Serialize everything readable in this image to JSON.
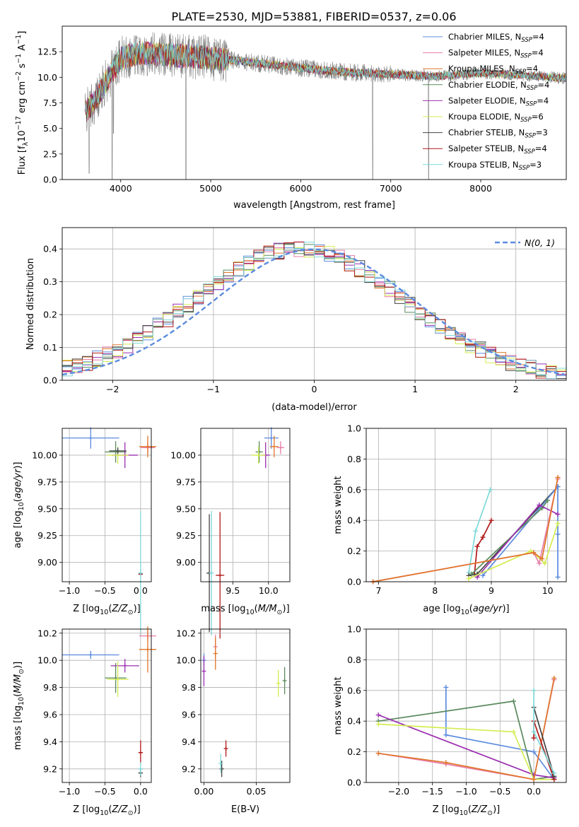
{
  "figure": {
    "title": "PLATE=2530, MJD=53881, FIBERID=0537, z=0.06"
  },
  "colors": {
    "chabrier_miles": "#5b8bde",
    "salpeter_miles": "#e87ea8",
    "kroupa_miles": "#e0762a",
    "chabrier_elodie": "#5a8a5e",
    "salpeter_elodie": "#9b2fb0",
    "kroupa_elodie": "#d4ec52",
    "chabrier_stelib": "#444444",
    "salpeter_stelib": "#b01818",
    "kroupa_stelib": "#7fd8d8",
    "spectrum": "#808080",
    "normal_curve": "#5b8bde",
    "grid": "#b0b0b0"
  },
  "chart_data": [
    {
      "id": "spectrum",
      "type": "line",
      "title": "PLATE=2530, MJD=53881, FIBERID=0537, z=0.06",
      "xlabel": "wavelength [Angstrom, rest frame]",
      "ylabel": "Flux [f_λ 10^-17 erg cm^-2 s^-1 A^-1]",
      "xlim": [
        3350,
        8950
      ],
      "ylim": [
        0,
        15
      ],
      "xticks": [
        4000,
        5000,
        6000,
        7000,
        8000
      ],
      "yticks": [
        0.0,
        2.5,
        5.0,
        7.5,
        10.0,
        12.5
      ],
      "grid": false,
      "legend_position": "top-right",
      "legend": [
        "Chabrier MILES, N_SSP=4",
        "Salpeter MILES, N_SSP=4",
        "Kroupa MILES, N_SSP=4",
        "Chabrier ELODIE, N_SSP=4",
        "Salpeter ELODIE, N_SSP=4",
        "Kroupa ELODIE, N_SSP=6",
        "Chabrier STELIB, N_SSP=3",
        "Salpeter STELIB, N_SSP=4",
        "Kroupa STELIB, N_SSP=3"
      ],
      "spectrum_envelope": {
        "x": [
          3600,
          3700,
          3800,
          3900,
          4000,
          4200,
          4500,
          5000,
          5500,
          6000,
          6500,
          7000,
          7500,
          8000,
          8500,
          8950
        ],
        "y": [
          6.5,
          7.5,
          9.0,
          10.5,
          11.8,
          12.4,
          12.2,
          11.9,
          11.4,
          10.9,
          10.5,
          10.3,
          10.1,
          10.4,
          10.2,
          9.9
        ]
      },
      "dips": [
        {
          "x": 3650,
          "y": 0.6
        },
        {
          "x": 3905,
          "y": 0.0
        },
        {
          "x": 3920,
          "y": 4.5
        },
        {
          "x": 4725,
          "y": 0.0
        },
        {
          "x": 6800,
          "y": 0.0
        },
        {
          "x": 7420,
          "y": 0.0
        }
      ]
    },
    {
      "id": "residuals",
      "type": "histogram",
      "xlabel": "(data-model)/error",
      "ylabel": "Normed distribution",
      "xlim": [
        -2.5,
        2.5
      ],
      "ylim": [
        0,
        0.465
      ],
      "xticks": [
        -2,
        -1,
        0,
        1,
        2
      ],
      "yticks": [
        0.0,
        0.1,
        0.2,
        0.3,
        0.4
      ],
      "grid": true,
      "legend_position": "top-right",
      "curve_label": "N(0, 1)"
    },
    {
      "id": "age_vs_Z",
      "type": "scatter",
      "xlabel": "Z [log10(Z/Z⊙)]",
      "ylabel": "age [log10(age/yr)]",
      "xlim": [
        -1.1,
        0.15
      ],
      "ylim": [
        8.82,
        10.25
      ],
      "xticks": [
        -1.0,
        -0.5,
        0.0
      ],
      "yticks": [
        9.0,
        9.25,
        9.5,
        9.75,
        10.0
      ],
      "grid": true,
      "points": [
        {
          "series": "chabrier_miles",
          "x": -0.7,
          "y": 10.16,
          "xerr": 0.4,
          "yerr": 0.1
        },
        {
          "series": "salpeter_miles",
          "x": 0.1,
          "y": 10.07,
          "xerr": 0.1,
          "yerr": 0.06
        },
        {
          "series": "kroupa_miles",
          "x": 0.1,
          "y": 10.08,
          "xerr": 0.12,
          "yerr": 0.1
        },
        {
          "series": "chabrier_elodie",
          "x": -0.35,
          "y": 10.03,
          "xerr": 0.15,
          "yerr": 0.1
        },
        {
          "series": "salpeter_elodie",
          "x": -0.22,
          "y": 10.0,
          "xerr": 0.18,
          "yerr": 0.12
        },
        {
          "series": "kroupa_elodie",
          "x": -0.32,
          "y": 10.0,
          "xerr": 0.15,
          "yerr": 0.08
        },
        {
          "series": "chabrier_stelib",
          "x": -0.32,
          "y": 10.04,
          "xerr": 0.12,
          "yerr": 0.03
        },
        {
          "series": "salpeter_stelib",
          "x": 0.0,
          "y": 8.89,
          "xerr": 0.03,
          "yerr": 0.0
        },
        {
          "series": "kroupa_stelib",
          "x": 0.0,
          "y": 8.9,
          "xerr": 0.03,
          "yerr": 0.58
        }
      ]
    },
    {
      "id": "age_vs_mass",
      "type": "scatter",
      "xlabel": "mass [log10(M/M⊙)]",
      "ylabel": "",
      "xlim": [
        9.05,
        10.3
      ],
      "ylim": [
        8.82,
        10.25
      ],
      "xticks": [
        9.5,
        10.0
      ],
      "yticks": [
        9.0,
        9.25,
        9.5,
        9.75,
        10.0
      ],
      "grid": true,
      "points": [
        {
          "series": "chabrier_miles",
          "x": 10.04,
          "y": 10.16,
          "xerr": 0.1,
          "yerr": 0.1
        },
        {
          "series": "salpeter_miles",
          "x": 10.17,
          "y": 10.07,
          "xerr": 0.05,
          "yerr": 0.06
        },
        {
          "series": "kroupa_miles",
          "x": 10.08,
          "y": 10.08,
          "xerr": 0.06,
          "yerr": 0.1
        },
        {
          "series": "chabrier_elodie",
          "x": 9.87,
          "y": 10.03,
          "xerr": 0.05,
          "yerr": 0.1
        },
        {
          "series": "salpeter_elodie",
          "x": 9.96,
          "y": 10.0,
          "xerr": 0.06,
          "yerr": 0.12
        },
        {
          "series": "kroupa_elodie",
          "x": 9.86,
          "y": 10.0,
          "xerr": 0.1,
          "yerr": 0.08
        },
        {
          "series": "chabrier_stelib",
          "x": 9.17,
          "y": 8.9,
          "xerr": 0.04,
          "yerr": 0.55
        },
        {
          "series": "salpeter_stelib",
          "x": 9.32,
          "y": 8.88,
          "xerr": 0.06,
          "yerr": 0.59
        },
        {
          "series": "kroupa_stelib",
          "x": 9.2,
          "y": 8.9,
          "xerr": 0.03,
          "yerr": 0.58
        }
      ]
    },
    {
      "id": "massweight_vs_age",
      "type": "line",
      "xlabel": "age [log10(age/yr)]",
      "ylabel": "mass weight",
      "xlim": [
        6.78,
        10.33
      ],
      "ylim": [
        0,
        1.0
      ],
      "xticks": [
        7,
        8,
        9,
        10
      ],
      "yticks": [
        0.0,
        0.2,
        0.4,
        0.6,
        0.8,
        1.0
      ],
      "grid": true,
      "series": [
        {
          "key": "kroupa_stelib",
          "x": [
            8.6,
            8.72,
            8.98
          ],
          "y": [
            0.06,
            0.33,
            0.6
          ]
        },
        {
          "key": "salpeter_stelib",
          "x": [
            8.7,
            8.75,
            8.85,
            9.0
          ],
          "y": [
            0.05,
            0.23,
            0.29,
            0.4
          ]
        },
        {
          "key": "chabrier_stelib",
          "x": [
            8.6,
            8.75,
            10.18
          ],
          "y": [
            0.04,
            0.05,
            0.62
          ]
        },
        {
          "key": "chabrier_miles",
          "x": [
            8.85,
            10.18,
            10.18,
            10.18
          ],
          "y": [
            0.04,
            0.62,
            0.31,
            0.03
          ]
        },
        {
          "key": "chabrier_elodie",
          "x": [
            8.65,
            9.9,
            10.0
          ],
          "y": [
            0.05,
            0.48,
            0.53
          ]
        },
        {
          "key": "salpeter_elodie",
          "x": [
            8.75,
            9.85,
            10.18
          ],
          "y": [
            0.03,
            0.5,
            0.44
          ]
        },
        {
          "key": "kroupa_elodie",
          "x": [
            8.6,
            9.7,
            9.95,
            10.18
          ],
          "y": [
            0.02,
            0.2,
            0.12,
            0.38
          ]
        },
        {
          "key": "salpeter_miles",
          "x": [
            6.9,
            9.75,
            9.85,
            10.18
          ],
          "y": [
            0.0,
            0.19,
            0.12,
            0.67
          ]
        },
        {
          "key": "kroupa_miles",
          "x": [
            6.9,
            9.75,
            9.9,
            10.18
          ],
          "y": [
            0.0,
            0.19,
            0.15,
            0.68
          ]
        }
      ]
    },
    {
      "id": "mass_vs_Z",
      "type": "scatter",
      "xlabel": "Z [log10(Z/Z⊙)]",
      "ylabel": "mass [log10(M/M⊙)]",
      "xlim": [
        -1.1,
        0.15
      ],
      "ylim": [
        9.1,
        10.23
      ],
      "xticks": [
        -1.0,
        -0.5,
        0.0
      ],
      "yticks": [
        9.2,
        9.4,
        9.6,
        9.8,
        10.0,
        10.2
      ],
      "grid": true,
      "points": [
        {
          "series": "chabrier_miles",
          "x": -0.7,
          "y": 10.04,
          "xerr": 0.4,
          "yerr": 0.03
        },
        {
          "series": "salpeter_miles",
          "x": 0.1,
          "y": 10.18,
          "xerr": 0.12,
          "yerr": 0.04
        },
        {
          "series": "kroupa_miles",
          "x": 0.1,
          "y": 10.08,
          "xerr": 0.12,
          "yerr": 0.17
        },
        {
          "series": "chabrier_elodie",
          "x": -0.35,
          "y": 9.87,
          "xerr": 0.15,
          "yerr": 0.11
        },
        {
          "series": "salpeter_elodie",
          "x": -0.22,
          "y": 9.96,
          "xerr": 0.2,
          "yerr": 0.05
        },
        {
          "series": "kroupa_elodie",
          "x": -0.32,
          "y": 9.86,
          "xerr": 0.15,
          "yerr": 0.13
        },
        {
          "series": "chabrier_stelib",
          "x": 0.0,
          "y": 9.17,
          "xerr": 0.03,
          "yerr": 0.03
        },
        {
          "series": "salpeter_stelib",
          "x": 0.0,
          "y": 9.32,
          "xerr": 0.03,
          "yerr": 0.09
        },
        {
          "series": "kroupa_stelib",
          "x": 0.0,
          "y": 9.2,
          "xerr": 0.03,
          "yerr": 0.05
        }
      ]
    },
    {
      "id": "mass_vs_ebv",
      "type": "scatter",
      "xlabel": "E(B-V)",
      "ylabel": "",
      "xlim": [
        -0.003,
        0.082
      ],
      "ylim": [
        9.1,
        10.23
      ],
      "xticks": [
        0.0,
        0.05
      ],
      "yticks": [
        9.2,
        9.4,
        9.6,
        9.8,
        10.0,
        10.2
      ],
      "grid": true,
      "points": [
        {
          "series": "chabrier_miles",
          "x": 0.0,
          "y": 10.0,
          "xerr": 0,
          "yerr": 0.05
        },
        {
          "series": "salpeter_miles",
          "x": 0.011,
          "y": 10.1,
          "xerr": 0,
          "yerr": 0.09
        },
        {
          "series": "kroupa_miles",
          "x": 0.011,
          "y": 10.05,
          "xerr": 0,
          "yerr": 0.12
        },
        {
          "series": "chabrier_elodie",
          "x": 0.077,
          "y": 9.85,
          "xerr": 0,
          "yerr": 0.1
        },
        {
          "series": "salpeter_elodie",
          "x": 0.0,
          "y": 9.92,
          "xerr": 0,
          "yerr": 0.11
        },
        {
          "series": "kroupa_elodie",
          "x": 0.071,
          "y": 9.83,
          "xerr": 0,
          "yerr": 0.1
        },
        {
          "series": "chabrier_stelib",
          "x": 0.017,
          "y": 9.2,
          "xerr": 0,
          "yerr": 0.06
        },
        {
          "series": "salpeter_stelib",
          "x": 0.021,
          "y": 9.35,
          "xerr": 0,
          "yerr": 0.06
        },
        {
          "series": "kroupa_stelib",
          "x": 0.016,
          "y": 9.24,
          "xerr": 0,
          "yerr": 0.07
        }
      ]
    },
    {
      "id": "massweight_vs_Z",
      "type": "line",
      "xlabel": "Z [log10(Z/Z⊙)]",
      "ylabel": "mass weight",
      "xlim": [
        -2.48,
        0.48
      ],
      "ylim": [
        0,
        1.0
      ],
      "xticks": [
        -2.0,
        -1.5,
        -1.0,
        -0.5,
        0.0
      ],
      "yticks": [
        0.0,
        0.2,
        0.4,
        0.6,
        0.8,
        1.0
      ],
      "grid": true,
      "series": [
        {
          "key": "chabrier_miles",
          "x": [
            -1.3,
            -1.3,
            0.0,
            0.3
          ],
          "y": [
            0.62,
            0.31,
            0.2,
            0.02
          ]
        },
        {
          "key": "chabrier_elodie",
          "x": [
            -2.3,
            -0.3,
            0.0,
            0.3
          ],
          "y": [
            0.4,
            0.53,
            0.02,
            0.04
          ]
        },
        {
          "key": "salpeter_elodie",
          "x": [
            -2.3,
            0.0,
            0.3
          ],
          "y": [
            0.44,
            0.05,
            0.03
          ]
        },
        {
          "key": "kroupa_elodie",
          "x": [
            -2.3,
            -0.3,
            0.0,
            0.3
          ],
          "y": [
            0.38,
            0.33,
            0.02,
            0.02
          ]
        },
        {
          "key": "salpeter_miles",
          "x": [
            -2.3,
            -1.3,
            0.0,
            0.3
          ],
          "y": [
            0.19,
            0.12,
            0.02,
            0.67
          ]
        },
        {
          "key": "kroupa_miles",
          "x": [
            -2.3,
            -1.3,
            0.0,
            0.3
          ],
          "y": [
            0.19,
            0.13,
            0.02,
            0.68
          ]
        },
        {
          "key": "salpeter_stelib",
          "x": [
            0.0,
            0.0,
            0.3
          ],
          "y": [
            0.29,
            0.4,
            0.02
          ]
        },
        {
          "key": "chabrier_stelib",
          "x": [
            0.0,
            0.3
          ],
          "y": [
            0.49,
            0.04
          ]
        },
        {
          "key": "kroupa_stelib",
          "x": [
            0.0,
            0.0,
            0.3
          ],
          "y": [
            0.6,
            0.33,
            0.06
          ]
        }
      ]
    }
  ]
}
